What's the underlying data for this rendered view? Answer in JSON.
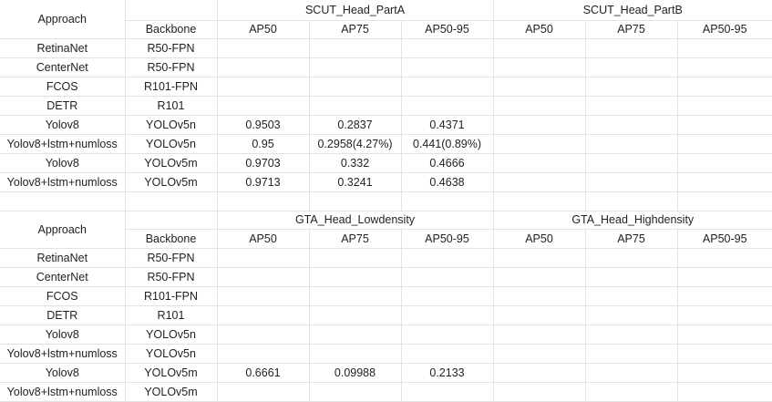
{
  "columns": {
    "approach": "Approach",
    "backbone": "Backbone",
    "metrics": [
      "AP50",
      "AP75",
      "AP50-95",
      "AP50",
      "AP75",
      "AP50-95"
    ]
  },
  "blocks": [
    {
      "datasets": [
        "SCUT_Head_PartA",
        "SCUT_Head_PartB"
      ],
      "rows": [
        {
          "approach": "RetinaNet",
          "backbone": "R50-FPN",
          "values": [
            "",
            "",
            "",
            "",
            "",
            ""
          ]
        },
        {
          "approach": "CenterNet",
          "backbone": "R50-FPN",
          "values": [
            "",
            "",
            "",
            "",
            "",
            ""
          ]
        },
        {
          "approach": "FCOS",
          "backbone": "R101-FPN",
          "values": [
            "",
            "",
            "",
            "",
            "",
            ""
          ]
        },
        {
          "approach": "DETR",
          "backbone": "R101",
          "values": [
            "",
            "",
            "",
            "",
            "",
            ""
          ]
        },
        {
          "approach": "Yolov8",
          "backbone": "YOLOv5n",
          "values": [
            "0.9503",
            "0.2837",
            "0.4371",
            "",
            "",
            ""
          ]
        },
        {
          "approach": "Yolov8+lstm+numloss",
          "backbone": "YOLOv5n",
          "values": [
            "0.95",
            "0.2958(4.27%)",
            "0.441(0.89%)",
            "",
            "",
            ""
          ]
        },
        {
          "approach": "Yolov8",
          "backbone": "YOLOv5m",
          "values": [
            "0.9703",
            "0.332",
            "0.4666",
            "",
            "",
            ""
          ]
        },
        {
          "approach": "Yolov8+lstm+numloss",
          "backbone": "YOLOv5m",
          "values": [
            "0.9713",
            "0.3241",
            "0.4638",
            "",
            "",
            ""
          ]
        }
      ]
    },
    {
      "datasets": [
        "GTA_Head_Lowdensity",
        "GTA_Head_Highdensity"
      ],
      "rows": [
        {
          "approach": "RetinaNet",
          "backbone": "R50-FPN",
          "values": [
            "",
            "",
            "",
            "",
            "",
            ""
          ]
        },
        {
          "approach": "CenterNet",
          "backbone": "R50-FPN",
          "values": [
            "",
            "",
            "",
            "",
            "",
            ""
          ]
        },
        {
          "approach": "FCOS",
          "backbone": "R101-FPN",
          "values": [
            "",
            "",
            "",
            "",
            "",
            ""
          ]
        },
        {
          "approach": "DETR",
          "backbone": "R101",
          "values": [
            "",
            "",
            "",
            "",
            "",
            ""
          ]
        },
        {
          "approach": "Yolov8",
          "backbone": "YOLOv5n",
          "values": [
            "",
            "",
            "",
            "",
            "",
            ""
          ]
        },
        {
          "approach": "Yolov8+lstm+numloss",
          "backbone": "YOLOv5n",
          "values": [
            "",
            "",
            "",
            "",
            "",
            ""
          ]
        },
        {
          "approach": "Yolov8",
          "backbone": "YOLOv5m",
          "values": [
            "0.6661",
            "0.09988",
            "0.2133",
            "",
            "",
            ""
          ]
        },
        {
          "approach": "Yolov8+lstm+numloss",
          "backbone": "YOLOv5m",
          "values": [
            "",
            "",
            "",
            "",
            "",
            ""
          ]
        }
      ]
    }
  ]
}
